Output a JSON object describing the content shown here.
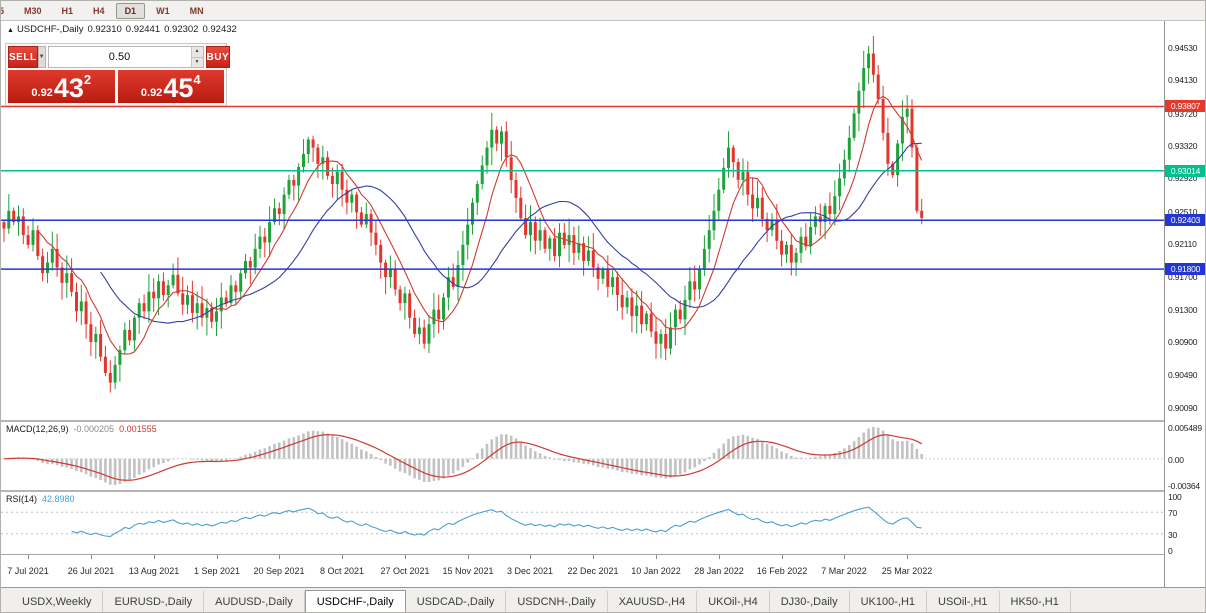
{
  "toolbar": {
    "periods": [
      {
        "label": "5",
        "active": false
      },
      {
        "label": "M30",
        "active": false
      },
      {
        "label": "H1",
        "active": false
      },
      {
        "label": "H4",
        "active": false
      },
      {
        "label": "D1",
        "active": true
      },
      {
        "label": "W1",
        "active": false
      },
      {
        "label": "MN",
        "active": false
      }
    ]
  },
  "header": {
    "collapse_arrow": "▲",
    "symbol": "USDCHF-,Daily",
    "open": "0.92310",
    "high": "0.92441",
    "low": "0.92302",
    "close": "0.92432"
  },
  "trade_panel": {
    "sell_label": "SELL",
    "buy_label": "BUY",
    "volume": "0.50",
    "dropdown_arrow": "▼",
    "spinner_up": "▲",
    "spinner_down": "▼",
    "sell_price": {
      "prefix": "0.92",
      "big": "43",
      "sup": "2"
    },
    "buy_price": {
      "prefix": "0.92",
      "big": "45",
      "sup": "4"
    }
  },
  "macd": {
    "name": "MACD(12,26,9)",
    "main_value": "-0.000205",
    "signal_value": "0.001555"
  },
  "rsi": {
    "name": "RSI(14)",
    "value": "42.8980"
  },
  "chart_data": {
    "type": "candlestick",
    "symbol": "USDCHF-,Daily",
    "price_range": {
      "top": 0.948,
      "bottom": 0.9
    },
    "closes": [
      0.923,
      0.9252,
      0.9238,
      0.9245,
      0.9222,
      0.921,
      0.9228,
      0.9196,
      0.9175,
      0.9188,
      0.9205,
      0.9182,
      0.9163,
      0.9175,
      0.9152,
      0.9128,
      0.914,
      0.9112,
      0.909,
      0.91,
      0.9072,
      0.9052,
      0.904,
      0.9062,
      0.908,
      0.9105,
      0.9092,
      0.912,
      0.9138,
      0.9128,
      0.9152,
      0.9144,
      0.9165,
      0.9148,
      0.916,
      0.9173,
      0.915,
      0.9136,
      0.9148,
      0.9126,
      0.9138,
      0.912,
      0.9132,
      0.9115,
      0.9128,
      0.9145,
      0.9138,
      0.916,
      0.9152,
      0.9175,
      0.919,
      0.9182,
      0.9205,
      0.922,
      0.9213,
      0.9238,
      0.9255,
      0.9248,
      0.9272,
      0.929,
      0.9283,
      0.9306,
      0.9322,
      0.934,
      0.933,
      0.931,
      0.9318,
      0.9295,
      0.9285,
      0.93,
      0.9278,
      0.9262,
      0.9272,
      0.925,
      0.9235,
      0.9248,
      0.9225,
      0.921,
      0.9188,
      0.917,
      0.918,
      0.9155,
      0.9138,
      0.915,
      0.912,
      0.91,
      0.9108,
      0.9088,
      0.9112,
      0.913,
      0.9118,
      0.9145,
      0.917,
      0.9158,
      0.9185,
      0.921,
      0.9235,
      0.9262,
      0.9285,
      0.9308,
      0.933,
      0.9352,
      0.9335,
      0.935,
      0.9318,
      0.929,
      0.9268,
      0.9243,
      0.9222,
      0.9238,
      0.9215,
      0.9228,
      0.9205,
      0.9218,
      0.9196,
      0.9225,
      0.921,
      0.9222,
      0.92,
      0.9212,
      0.919,
      0.9203,
      0.9182,
      0.9168,
      0.918,
      0.9158,
      0.917,
      0.9148,
      0.9133,
      0.9145,
      0.9122,
      0.9135,
      0.9112,
      0.9125,
      0.9103,
      0.9088,
      0.91,
      0.9082,
      0.9108,
      0.913,
      0.9118,
      0.9142,
      0.9165,
      0.9155,
      0.918,
      0.9205,
      0.9228,
      0.9252,
      0.9278,
      0.9305,
      0.933,
      0.9312,
      0.929,
      0.93,
      0.9272,
      0.9255,
      0.9268,
      0.9242,
      0.9228,
      0.924,
      0.9215,
      0.9198,
      0.921,
      0.9188,
      0.92,
      0.922,
      0.9208,
      0.9232,
      0.9245,
      0.9238,
      0.9258,
      0.9248,
      0.927,
      0.9292,
      0.9315,
      0.9342,
      0.9372,
      0.94,
      0.9428,
      0.9446,
      0.942,
      0.939,
      0.9348,
      0.931,
      0.9296,
      0.9335,
      0.9368,
      0.9378,
      0.933,
      0.9252,
      0.92432
    ],
    "hlines": [
      {
        "price": 0.93807,
        "label": "0.93807",
        "color": "#e23b2e"
      },
      {
        "price": 0.93014,
        "label": "0.93014",
        "color": "#00c08e"
      },
      {
        "price": 0.92403,
        "label": "0.92403",
        "color": "#2336d4"
      },
      {
        "price": 0.918,
        "label": "0.91800",
        "color": "#2336d4"
      }
    ],
    "y_axis_ticks": [
      "0.94530",
      "0.94130",
      "0.93720",
      "0.93320",
      "0.92920",
      "0.92510",
      "0.92110",
      "0.91700",
      "0.91300",
      "0.90900",
      "0.90490",
      "0.90090"
    ],
    "macd_axis": [
      "0.005489",
      "0.00",
      "-0.00364"
    ],
    "rsi_axis": [
      {
        "label": "100",
        "value": 100
      },
      {
        "label": "70",
        "value": 70
      },
      {
        "label": "30",
        "value": 30
      },
      {
        "label": "0",
        "value": 0
      }
    ],
    "rsi_levels": [
      70,
      30
    ],
    "date_labels": [
      {
        "label": "7 Jul 2021",
        "idx": 5
      },
      {
        "label": "26 Jul 2021",
        "idx": 18
      },
      {
        "label": "13 Aug 2021",
        "idx": 31
      },
      {
        "label": "1 Sep 2021",
        "idx": 44
      },
      {
        "label": "20 Sep 2021",
        "idx": 57
      },
      {
        "label": "8 Oct 2021",
        "idx": 70
      },
      {
        "label": "27 Oct 2021",
        "idx": 83
      },
      {
        "label": "15 Nov 2021",
        "idx": 96
      },
      {
        "label": "3 Dec 2021",
        "idx": 109
      },
      {
        "label": "22 Dec 2021",
        "idx": 122
      },
      {
        "label": "10 Jan 2022",
        "idx": 135
      },
      {
        "label": "28 Jan 2022",
        "idx": 148
      },
      {
        "label": "16 Feb 2022",
        "idx": 161
      },
      {
        "label": "7 Mar 2022",
        "idx": 174
      },
      {
        "label": "25 Mar 2022",
        "idx": 187
      }
    ]
  },
  "colors": {
    "candle_up": "#1fa23a",
    "candle_down": "#e3352d",
    "ma_fast": "#cf3b30",
    "ma_slow": "#33409e",
    "macd_bar": "#c2c2c2",
    "macd_signal": "#cc3a33",
    "rsi_line": "#4a9fd4",
    "rsi_level": "#c0c0c0"
  },
  "tabs": [
    {
      "label": "USDX,Weekly",
      "active": false
    },
    {
      "label": "EURUSD-,Daily",
      "active": false
    },
    {
      "label": "AUDUSD-,Daily",
      "active": false
    },
    {
      "label": "USDCHF-,Daily",
      "active": true
    },
    {
      "label": "USDCAD-,Daily",
      "active": false
    },
    {
      "label": "USDCNH-,Daily",
      "active": false
    },
    {
      "label": "XAUUSD-,H4",
      "active": false
    },
    {
      "label": "UKOil-,H4",
      "active": false
    },
    {
      "label": "DJ30-,Daily",
      "active": false
    },
    {
      "label": "UK100-,H1",
      "active": false
    },
    {
      "label": "USOil-,H1",
      "active": false
    },
    {
      "label": "HK50-,H1",
      "active": false
    }
  ]
}
